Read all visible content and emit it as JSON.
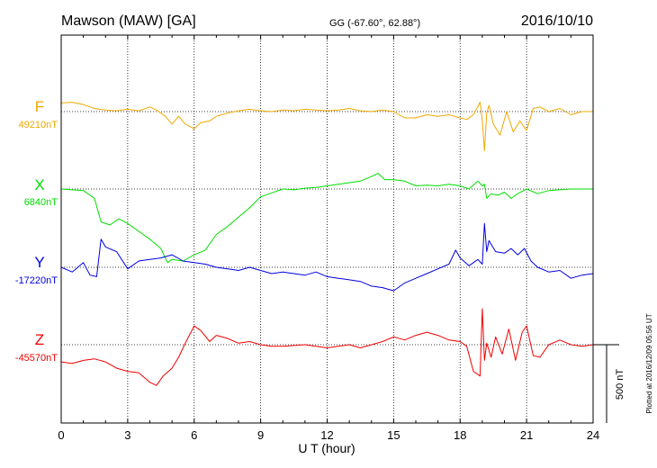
{
  "chart_data": {
    "type": "line",
    "title": "Mawson (MAW)  [GA]",
    "coords": "GG (-67.60°,  62.88°)",
    "date": "2016/10/10",
    "xlabel": "U T (hour)",
    "xlim": [
      0,
      24
    ],
    "x_ticks": [
      "0",
      "3",
      "6",
      "9",
      "12",
      "15",
      "18",
      "21",
      "24"
    ],
    "grid": true,
    "scale_bar_label": "500 nT",
    "scale_bar_nT": 500,
    "side_note": "Plotted at 2016/12/09 05:56 UT",
    "series": [
      {
        "name": "F",
        "baseline": "49210nT",
        "baseline_nT": 49210,
        "color": "#f0a800",
        "x": [
          0,
          0.5,
          1,
          1.5,
          2,
          2.5,
          3,
          3.5,
          4,
          4.3,
          4.7,
          5,
          5.3,
          5.6,
          6,
          6.3,
          6.7,
          7,
          7.5,
          8,
          8.5,
          9,
          9.5,
          10,
          10.5,
          11,
          11.5,
          12,
          12.5,
          13,
          13.5,
          14,
          14.5,
          15,
          15.5,
          16,
          16.5,
          17,
          17.5,
          18,
          18.3,
          18.6,
          18.9,
          19.0,
          19.1,
          19.2,
          19.3,
          19.5,
          19.8,
          20.1,
          20.4,
          20.7,
          21,
          21.3,
          21.6,
          22,
          22.5,
          23,
          23.5,
          24
        ],
        "values": [
          55,
          60,
          45,
          20,
          10,
          5,
          15,
          5,
          30,
          10,
          -30,
          -80,
          -30,
          -80,
          -110,
          -70,
          -60,
          -30,
          -10,
          5,
          15,
          5,
          0,
          10,
          5,
          15,
          10,
          5,
          10,
          20,
          5,
          0,
          10,
          0,
          -40,
          -40,
          -20,
          -30,
          -20,
          -40,
          -50,
          -20,
          60,
          -60,
          -250,
          -10,
          40,
          -80,
          -150,
          0,
          -130,
          -60,
          -120,
          20,
          30,
          0,
          20,
          -20,
          0,
          0
        ]
      },
      {
        "name": "X",
        "baseline": "6840nT",
        "baseline_nT": 6840,
        "color": "#00dd00",
        "x": [
          0,
          0.5,
          1,
          1.5,
          1.8,
          2.2,
          2.6,
          3,
          3.5,
          4,
          4.5,
          4.8,
          5,
          5.5,
          6,
          6.5,
          7,
          7.5,
          8,
          8.5,
          9,
          9.5,
          10,
          10.5,
          11,
          11.5,
          12,
          12.5,
          13,
          13.5,
          14,
          14.3,
          14.6,
          15,
          15.5,
          16,
          16.5,
          17,
          17.5,
          18,
          18.4,
          18.8,
          19.0,
          19.1,
          19.2,
          19.4,
          19.7,
          20,
          20.3,
          20.6,
          21,
          21.5,
          22,
          22.5,
          23,
          23.5,
          24
        ],
        "values": [
          0,
          -5,
          -10,
          -60,
          -210,
          -230,
          -190,
          -220,
          -270,
          -320,
          -380,
          -470,
          -450,
          -460,
          -420,
          -390,
          -290,
          -240,
          -180,
          -120,
          -50,
          -25,
          0,
          -5,
          5,
          10,
          20,
          30,
          40,
          50,
          80,
          100,
          60,
          60,
          50,
          20,
          25,
          20,
          30,
          20,
          0,
          50,
          20,
          30,
          -60,
          -30,
          -40,
          -20,
          -60,
          -30,
          0,
          -30,
          -10,
          -5,
          0,
          0,
          0
        ]
      },
      {
        "name": "Y",
        "baseline": "-17220nT",
        "baseline_nT": -17220,
        "color": "#0000e0",
        "x": [
          0,
          0.5,
          1,
          1.3,
          1.6,
          1.8,
          2,
          2.5,
          3,
          3.5,
          4,
          4.5,
          5,
          5.5,
          6,
          6.5,
          7,
          7.5,
          8,
          8.5,
          9,
          9.5,
          10,
          10.5,
          11,
          11.5,
          12,
          12.5,
          13,
          13.5,
          14,
          14.5,
          15,
          15.5,
          16,
          16.5,
          17,
          17.5,
          17.8,
          18,
          18.4,
          18.8,
          19.0,
          19.1,
          19.2,
          19.3,
          19.6,
          20,
          20.3,
          20.6,
          20.9,
          21.2,
          21.5,
          22,
          22.5,
          23,
          23.5,
          24
        ],
        "values": [
          0,
          -30,
          30,
          -50,
          -60,
          180,
          130,
          100,
          -10,
          40,
          50,
          60,
          80,
          40,
          30,
          20,
          0,
          -10,
          -20,
          0,
          -20,
          -40,
          -30,
          -40,
          -50,
          -30,
          -60,
          -70,
          -80,
          -90,
          -120,
          -130,
          -150,
          -100,
          -70,
          -40,
          -10,
          20,
          110,
          60,
          10,
          50,
          20,
          280,
          100,
          170,
          100,
          90,
          120,
          80,
          120,
          40,
          0,
          -30,
          -20,
          -70,
          -50,
          -40
        ]
      },
      {
        "name": "Z",
        "baseline": "-45570nT",
        "baseline_nT": -45570,
        "color": "#ee0000",
        "x": [
          0,
          0.5,
          1,
          1.5,
          2,
          2.5,
          3,
          3.5,
          4,
          4.3,
          4.6,
          5,
          5.3,
          5.6,
          6,
          6.3,
          6.7,
          7,
          7.5,
          8,
          8.5,
          9,
          9.5,
          10,
          10.5,
          11,
          11.5,
          12,
          12.5,
          13,
          13.5,
          14,
          14.5,
          15,
          15.5,
          16,
          16.5,
          17,
          17.5,
          18,
          18.3,
          18.6,
          18.9,
          19.0,
          19.1,
          19.2,
          19.4,
          19.6,
          19.9,
          20.2,
          20.5,
          20.8,
          21,
          21.3,
          21.6,
          22,
          22.5,
          23,
          23.5,
          24
        ],
        "values": [
          -110,
          -120,
          -100,
          -90,
          -110,
          -150,
          -170,
          -180,
          -240,
          -260,
          -200,
          -150,
          -80,
          10,
          120,
          90,
          20,
          60,
          40,
          10,
          20,
          0,
          -10,
          -10,
          -5,
          0,
          -10,
          -20,
          -10,
          0,
          -20,
          0,
          20,
          50,
          30,
          60,
          80,
          60,
          30,
          20,
          -10,
          -170,
          -200,
          230,
          -100,
          10,
          -80,
          50,
          -60,
          100,
          -100,
          80,
          120,
          -70,
          -80,
          0,
          30,
          0,
          -10,
          0
        ]
      }
    ]
  }
}
